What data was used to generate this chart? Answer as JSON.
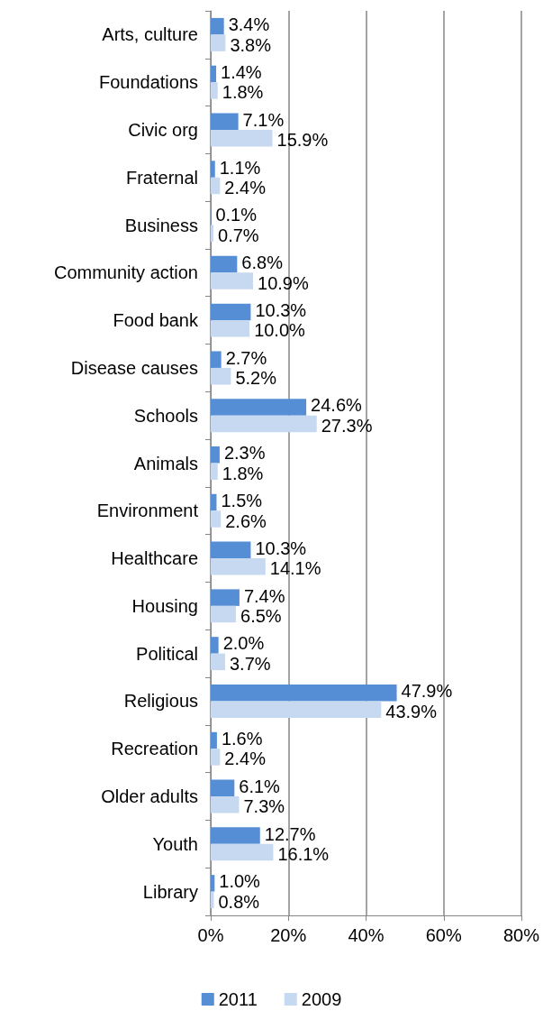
{
  "chart_data": {
    "type": "bar",
    "orientation": "horizontal",
    "categories": [
      "Arts, culture",
      "Foundations",
      "Civic org",
      "Fraternal",
      "Business",
      "Community action",
      "Food bank",
      "Disease causes",
      "Schools",
      "Animals",
      "Environment",
      "Healthcare",
      "Housing",
      "Political",
      "Religious",
      "Recreation",
      "Older adults",
      "Youth",
      "Library"
    ],
    "series": [
      {
        "name": "2011",
        "color": "#558ed5",
        "values": [
          3.4,
          1.4,
          7.1,
          1.1,
          0.1,
          6.8,
          10.3,
          2.7,
          24.6,
          2.3,
          1.5,
          10.3,
          7.4,
          2.0,
          47.9,
          1.6,
          6.1,
          12.7,
          1.0
        ],
        "value_labels": [
          "3.4%",
          "1.4%",
          "7.1%",
          "1.1%",
          "0.1%",
          "6.8%",
          "10.3%",
          "2.7%",
          "24.6%",
          "2.3%",
          "1.5%",
          "10.3%",
          "7.4%",
          "2.0%",
          "47.9%",
          "1.6%",
          "6.1%",
          "12.7%",
          "1.0%"
        ]
      },
      {
        "name": "2009",
        "color": "#c6d9f1",
        "values": [
          3.8,
          1.8,
          15.9,
          2.4,
          0.7,
          10.9,
          10.0,
          5.2,
          27.3,
          1.8,
          2.6,
          14.1,
          6.5,
          3.7,
          43.9,
          2.4,
          7.3,
          16.1,
          0.8
        ],
        "value_labels": [
          "3.8%",
          "1.8%",
          "15.9%",
          "2.4%",
          "0.7%",
          "10.9%",
          "10.0%",
          "5.2%",
          "27.3%",
          "1.8%",
          "2.6%",
          "14.1%",
          "6.5%",
          "3.7%",
          "43.9%",
          "2.4%",
          "7.3%",
          "16.1%",
          "0.8%"
        ]
      }
    ],
    "xlim": [
      0,
      80
    ],
    "xticks": [
      {
        "value": 0,
        "label": "0%"
      },
      {
        "value": 20,
        "label": "20%"
      },
      {
        "value": 40,
        "label": "40%"
      },
      {
        "value": 60,
        "label": "60%"
      },
      {
        "value": 80,
        "label": "80%"
      }
    ],
    "grid": "x",
    "legend": "bottom"
  }
}
